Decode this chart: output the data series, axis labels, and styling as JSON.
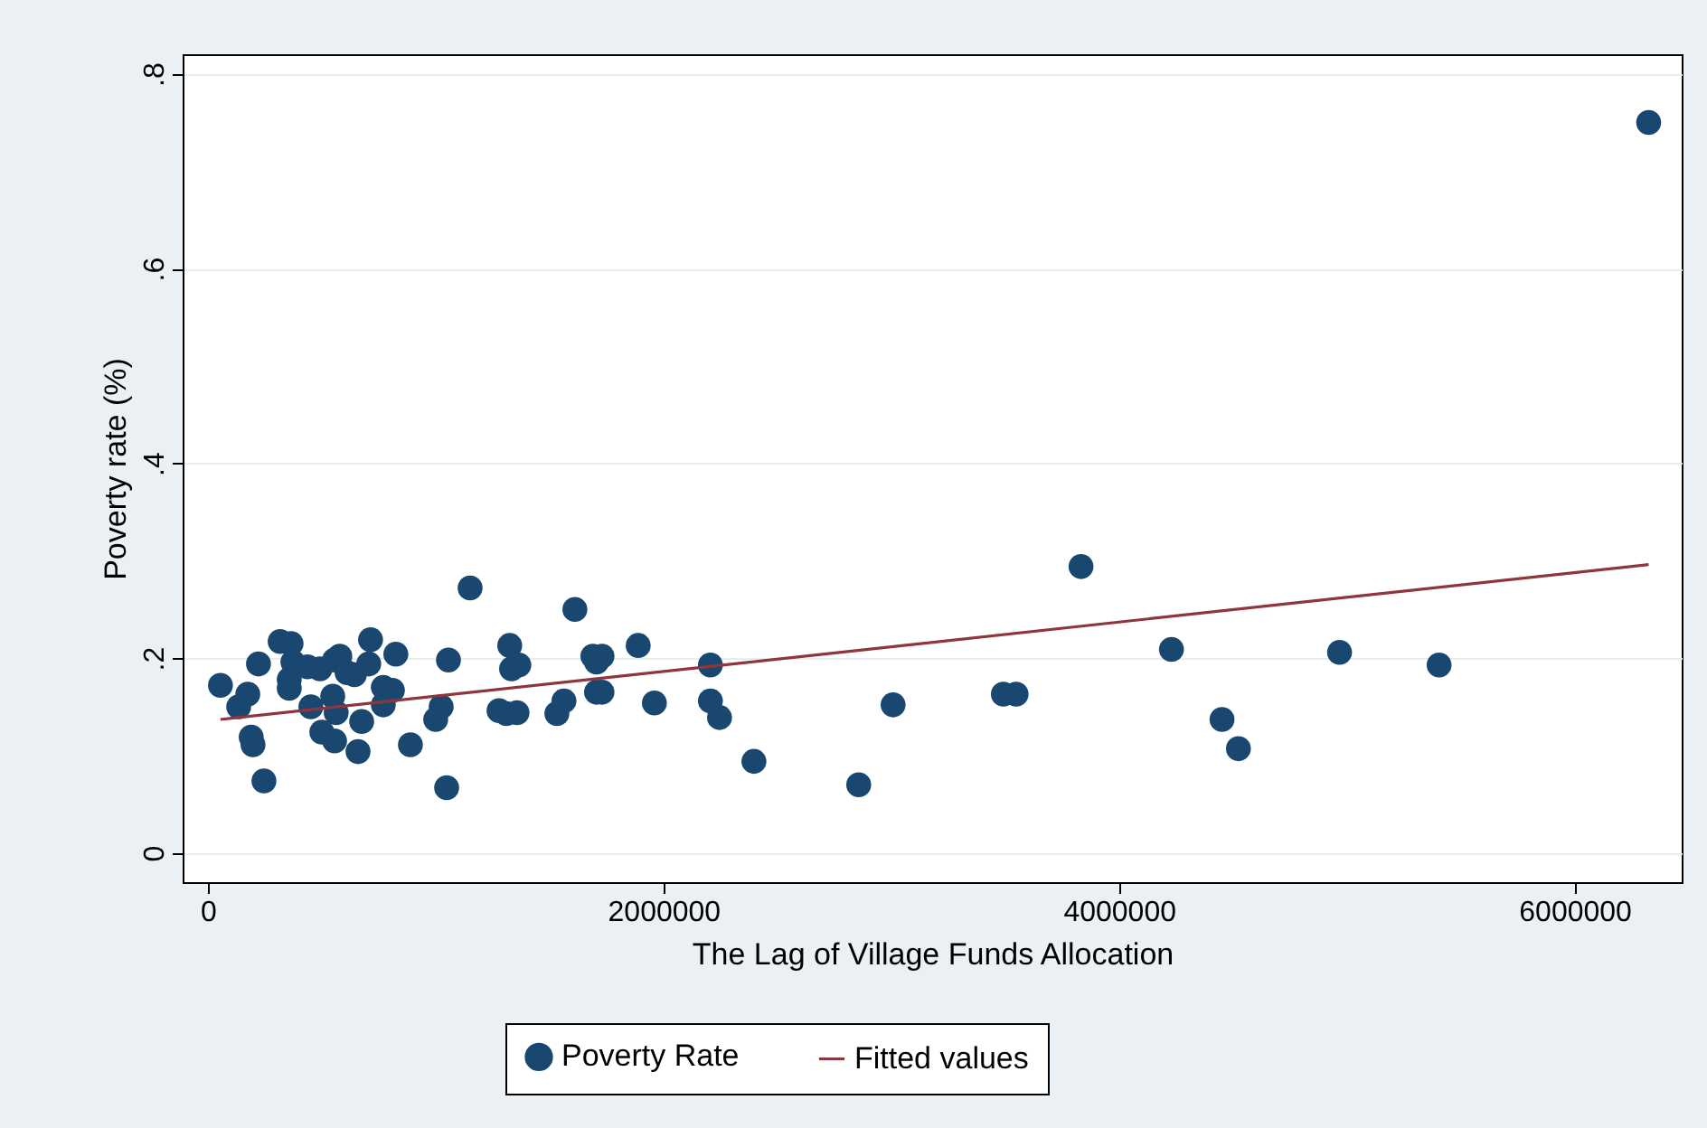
{
  "chart_data": {
    "type": "scatter",
    "xlabel": "The Lag of Village Funds Allocation",
    "ylabel": "Poverty rate (%)",
    "xlim": [
      -111000,
      6470000
    ],
    "xticks": [
      0,
      2000000,
      4000000,
      6000000
    ],
    "ylim": [
      -0.03,
      0.82
    ],
    "yticks": [
      0,
      {
        "value": 0.2,
        "label": ".2"
      },
      {
        "value": 0.4,
        "label": ".4"
      },
      {
        "value": 0.6,
        "label": ".6"
      },
      {
        "value": 0.8,
        "label": ".8"
      }
    ],
    "grid": "y",
    "legend": "bottom",
    "series": [
      {
        "name": "Poverty Rate",
        "marker": "circle",
        "color": "#1a476f",
        "x": [
          55000,
          135000,
          175000,
          190000,
          198000,
          222000,
          246000,
          317000,
          365000,
          373000,
          357000,
          357000,
          437000,
          452000,
          492000,
          500000,
          556000,
          548000,
          563000,
          556000,
          579000,
          611000,
          643000,
          659000,
          706000,
          675000,
          714000,
          770000,
          810000,
          825000,
          770000,
          889000,
          1000000,
          1024000,
          1056000,
          1048000,
          1151000,
          1278000,
          1325000,
          1333000,
          1310000,
          1357000,
          1365000,
          1532000,
          1563000,
          1611000,
          1690000,
          1706000,
          1730000,
          1706000,
          1730000,
          1889000,
          1960000,
          2206000,
          2206000,
          2246000,
          2397000,
          2857000,
          3008000,
          3492000,
          3548000,
          3833000,
          4230000,
          4452000,
          4524000,
          4968000,
          5405000,
          6325000
        ],
        "values": [
          0.172,
          0.15,
          0.163,
          0.119,
          0.111,
          0.194,
          0.074,
          0.217,
          0.215,
          0.196,
          0.178,
          0.169,
          0.191,
          0.15,
          0.189,
          0.124,
          0.115,
          0.161,
          0.144,
          0.198,
          0.202,
          0.185,
          0.183,
          0.104,
          0.194,
          0.135,
          0.219,
          0.17,
          0.167,
          0.204,
          0.152,
          0.111,
          0.137,
          0.15,
          0.198,
          0.067,
          0.272,
          0.146,
          0.213,
          0.189,
          0.143,
          0.144,
          0.193,
          0.143,
          0.156,
          0.25,
          0.202,
          0.196,
          0.202,
          0.165,
          0.165,
          0.213,
          0.154,
          0.193,
          0.156,
          0.139,
          0.094,
          0.07,
          0.152,
          0.163,
          0.163,
          0.294,
          0.209,
          0.137,
          0.107,
          0.206,
          0.193,
          0.75
        ]
      },
      {
        "name": "Fitted values",
        "type": "line",
        "color": "#90353b",
        "x": [
          55000,
          6325000
        ],
        "values": [
          0.137,
          0.296
        ]
      }
    ]
  }
}
